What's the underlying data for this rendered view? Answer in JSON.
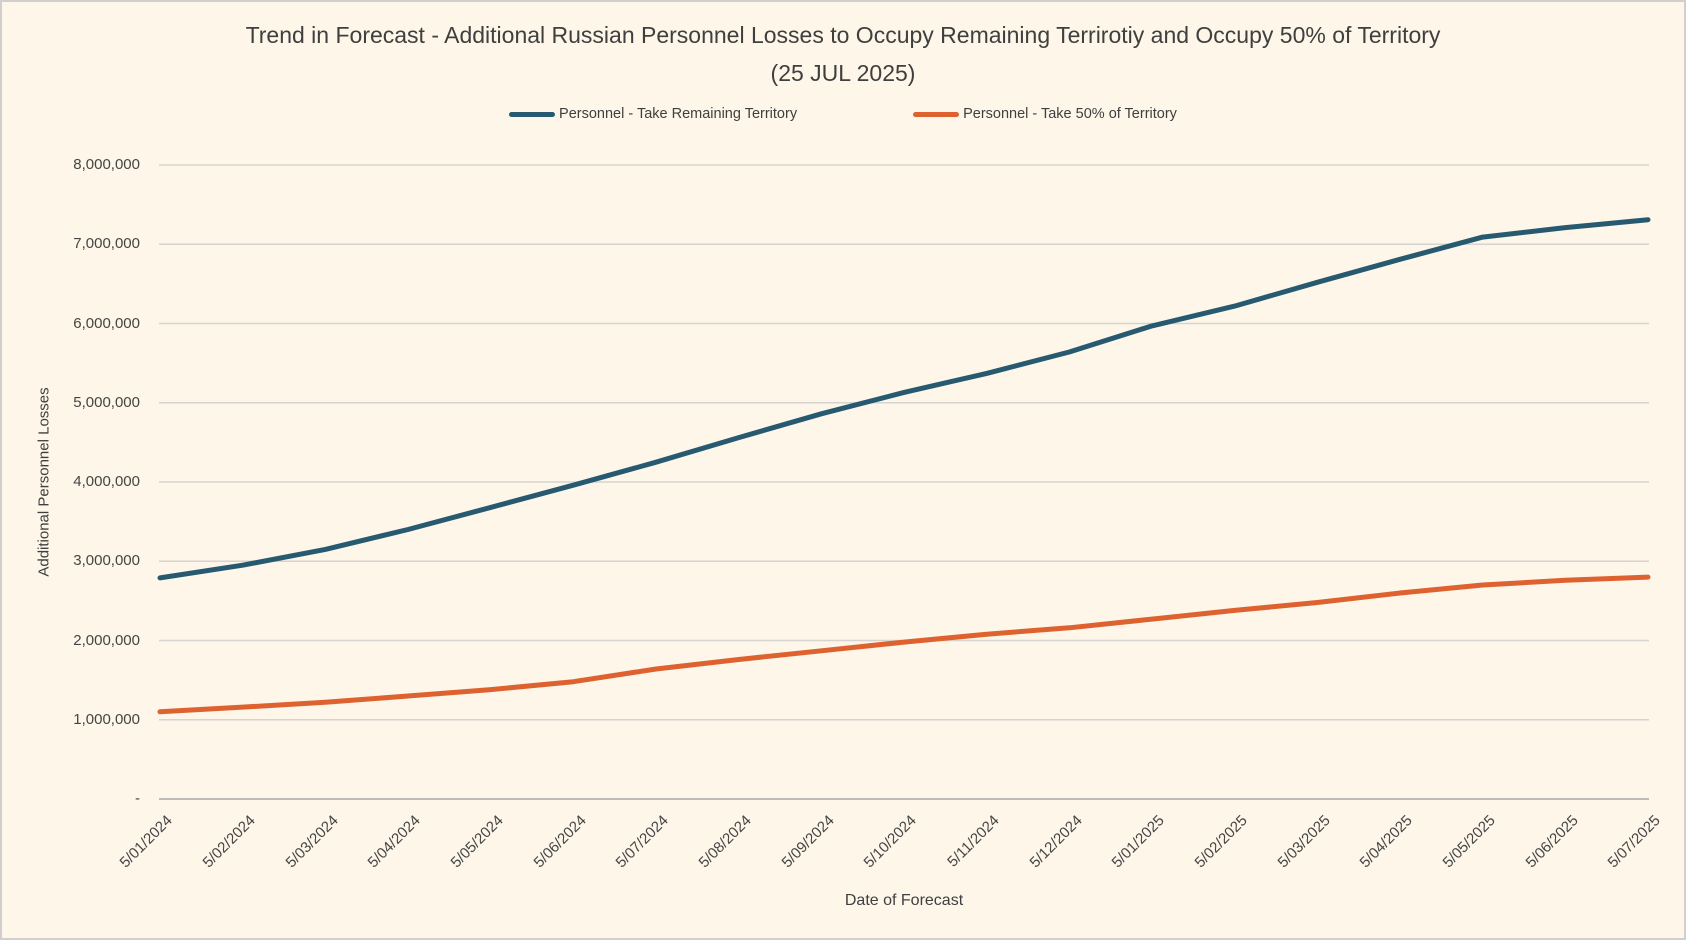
{
  "colors": {
    "background": "#fdf6e9",
    "frame_border": "#d0cece",
    "gridline": "#d6d3d0",
    "axis_line": "#bdbab7",
    "text": "#3f3f3f",
    "series_remaining": "#275a70",
    "series_fifty": "#de6230"
  },
  "chart_data": {
    "type": "line",
    "title": "Trend in Forecast - Additional Russian Personnel Losses to Occupy Remaining Terrirotiy and Occupy 50% of Territory",
    "subtitle": "(25 JUL 2025)",
    "xlabel": "Date of Forecast",
    "ylabel": "Additional Personnel Losses",
    "categories": [
      "5/01/2024",
      "5/02/2024",
      "5/03/2024",
      "5/04/2024",
      "5/05/2024",
      "5/06/2024",
      "5/07/2024",
      "5/08/2024",
      "5/09/2024",
      "5/10/2024",
      "5/11/2024",
      "5/12/2024",
      "5/01/2025",
      "5/02/2025",
      "5/03/2025",
      "5/04/2025",
      "5/05/2025",
      "5/06/2025",
      "5/07/2025"
    ],
    "series": [
      {
        "name": "Personnel - Take Remaining Territory",
        "color": "#275a70",
        "values": [
          2790000,
          2950000,
          3150000,
          3400000,
          3680000,
          3960000,
          4250000,
          4560000,
          4860000,
          5130000,
          5370000,
          5640000,
          5970000,
          6220000,
          6520000,
          6810000,
          7090000,
          7210000,
          7310000
        ]
      },
      {
        "name": "Personnel - Take 50% of Territory",
        "color": "#de6230",
        "values": [
          1100000,
          1160000,
          1220000,
          1300000,
          1380000,
          1480000,
          1640000,
          1760000,
          1870000,
          1980000,
          2080000,
          2160000,
          2270000,
          2380000,
          2480000,
          2600000,
          2700000,
          2760000,
          2800000
        ]
      }
    ],
    "y_ticks": [
      "8,000,000",
      "7,000,000",
      "6,000,000",
      "5,000,000",
      "4,000,000",
      "3,000,000",
      "2,000,000",
      "1,000,000",
      "-"
    ],
    "y_tick_values": [
      8000000,
      7000000,
      6000000,
      5000000,
      4000000,
      3000000,
      2000000,
      1000000,
      0
    ],
    "ylim": [
      0,
      8000000
    ],
    "grid": true,
    "legend_position": "top"
  }
}
